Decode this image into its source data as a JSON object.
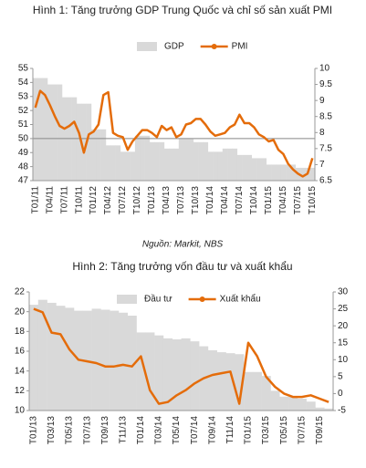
{
  "chart_data": [
    {
      "type": "bar_line",
      "title": "Hình 1: Tăng trưởng GDP Trung Quốc và chỉ số sản xuất PMI",
      "source": "Nguồn: Markit, NBS",
      "categories": [
        "T01/11",
        null,
        null,
        "T04/11",
        null,
        null,
        "T07/11",
        null,
        null,
        "T10/11",
        null,
        null,
        "T01/12",
        null,
        null,
        "T04/12",
        null,
        null,
        "T07/12",
        null,
        null,
        "T10/12",
        null,
        null,
        "T01/13",
        null,
        null,
        "T04/13",
        null,
        null,
        "T07/13",
        null,
        null,
        "T10/13",
        null,
        null,
        "T01/14",
        null,
        null,
        "T04/14",
        null,
        null,
        "T07/14",
        null,
        null,
        "T10/14",
        null,
        null,
        "T01/15",
        null,
        null,
        "T04/15",
        null,
        null,
        "T07/15",
        null,
        null,
        "T10/15"
      ],
      "series": [
        {
          "name": "GDP",
          "mark": "bar",
          "axis": "y2",
          "color": "#d9d9d9",
          "values": [
            9.7,
            9.7,
            9.7,
            9.5,
            9.5,
            9.5,
            9.1,
            9.1,
            9.1,
            8.9,
            8.9,
            8.9,
            8.1,
            8.1,
            8.1,
            7.6,
            7.6,
            7.6,
            7.4,
            7.4,
            7.4,
            7.9,
            7.9,
            7.9,
            7.7,
            7.7,
            7.7,
            7.5,
            7.5,
            7.5,
            7.8,
            7.8,
            7.8,
            7.7,
            7.7,
            7.7,
            7.4,
            7.4,
            7.4,
            7.5,
            7.5,
            7.5,
            7.3,
            7.3,
            7.3,
            7.2,
            7.2,
            7.2,
            7.0,
            7.0,
            7.0,
            7.0,
            7.0,
            7.0,
            6.9,
            6.9,
            6.9,
            6.9
          ]
        },
        {
          "name": "PMI",
          "mark": "line",
          "axis": "y",
          "color": "#e46c0a",
          "values": [
            52.2,
            53.4,
            53.1,
            52.4,
            51.6,
            50.9,
            50.7,
            50.9,
            51.2,
            50.4,
            49.0,
            50.3,
            50.5,
            51.0,
            53.1,
            53.3,
            50.4,
            50.2,
            50.1,
            49.2,
            49.8,
            50.2,
            50.6,
            50.6,
            50.4,
            50.1,
            50.9,
            50.6,
            50.8,
            50.1,
            50.3,
            51.0,
            51.1,
            51.4,
            51.4,
            51.0,
            50.5,
            50.2,
            50.3,
            50.4,
            50.8,
            51.0,
            51.7,
            51.1,
            51.1,
            50.8,
            50.3,
            50.1,
            49.8,
            49.9,
            49.2,
            48.9,
            48.2,
            47.8,
            47.5,
            47.3,
            47.5,
            48.6
          ]
        }
      ],
      "ylim": [
        47,
        55
      ],
      "yticks": [
        47,
        48,
        49,
        50,
        51,
        52,
        53,
        54,
        55
      ],
      "y2lim": [
        6.5,
        10
      ],
      "y2ticks": [
        6.5,
        7,
        7.5,
        8,
        8.5,
        9,
        9.5,
        10
      ],
      "hline": 50
    },
    {
      "type": "bar_line",
      "title": "Hình 2: Tăng trưởng vốn đầu tư và xuất khẩu",
      "categories": [
        "T01/13",
        null,
        "T03/13",
        null,
        "T05/13",
        null,
        "T07/13",
        null,
        "T09/13",
        null,
        "T11/13",
        null,
        "T01/14",
        null,
        "T03/14",
        null,
        "T05/14",
        null,
        "T07/14",
        null,
        "T09/14",
        null,
        "T11/14",
        null,
        "T01/15",
        null,
        "T03/15",
        null,
        "T05/15",
        null,
        "T07/15",
        null,
        "T09/15",
        null
      ],
      "series": [
        {
          "name": "Đầu tư",
          "mark": "bar",
          "axis": "y",
          "color": "#d9d9d9",
          "values": [
            20.7,
            21.2,
            20.9,
            20.6,
            20.4,
            20.1,
            20.1,
            20.3,
            20.2,
            20.1,
            19.9,
            19.6,
            17.9,
            17.9,
            17.6,
            17.3,
            17.2,
            17.3,
            17.0,
            16.5,
            16.1,
            15.9,
            15.8,
            15.7,
            13.9,
            13.9,
            13.5,
            12.0,
            11.4,
            11.4,
            11.2,
            10.9,
            10.3,
            10.2
          ]
        },
        {
          "name": "Xuất khẩu",
          "mark": "line",
          "axis": "y2",
          "color": "#e46c0a",
          "values": [
            25,
            24,
            18,
            17.5,
            13,
            10,
            9.5,
            9,
            8,
            8,
            8.5,
            8,
            11,
            1,
            -3,
            -2.5,
            -0.5,
            1,
            3,
            4.5,
            5.5,
            6,
            6.5,
            -3,
            15,
            11,
            5,
            2,
            0,
            -1,
            -1,
            -0.5,
            -1.5,
            -2.5
          ]
        }
      ],
      "ylim": [
        10,
        22
      ],
      "yticks": [
        10,
        12,
        14,
        16,
        18,
        20,
        22
      ],
      "y2lim": [
        -5,
        30
      ],
      "y2ticks": [
        -5,
        0,
        5,
        10,
        15,
        20,
        25,
        30
      ]
    }
  ]
}
